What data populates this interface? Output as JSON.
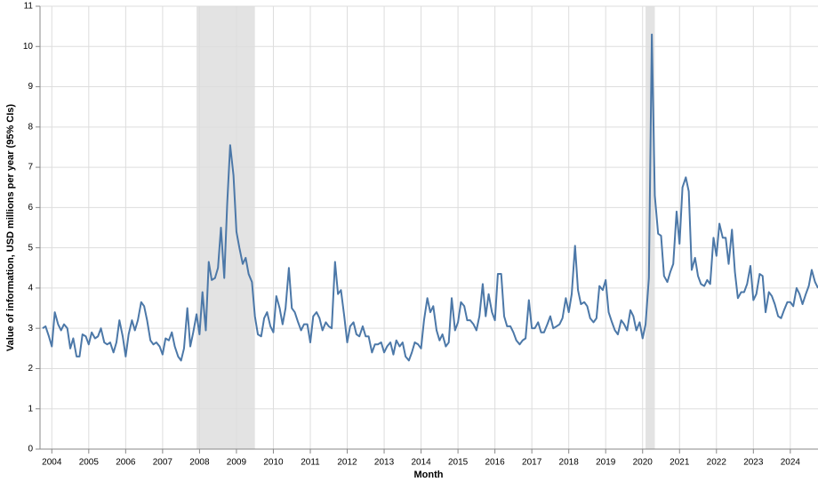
{
  "chart_data": {
    "type": "line",
    "x_label": "Month",
    "y_label": "Value of information, USD millions per year (95% CIs)",
    "color": "#4c78a8",
    "shade_color": "#e3e3e3",
    "grid": true,
    "xlim": [
      2003.68,
      2024.75
    ],
    "ylim": [
      0,
      11
    ],
    "xticks": [
      2004,
      2005,
      2006,
      2007,
      2008,
      2009,
      2010,
      2011,
      2012,
      2013,
      2014,
      2015,
      2016,
      2017,
      2018,
      2019,
      2020,
      2021,
      2022,
      2023,
      2024
    ],
    "yticks": [
      0,
      1,
      2,
      3,
      4,
      5,
      6,
      7,
      8,
      9,
      10,
      11
    ],
    "shaded_regions": [
      [
        2007.92,
        2009.5
      ],
      [
        2020.08,
        2020.33
      ]
    ],
    "x": [
      2003.75,
      2003.83,
      2003.92,
      2004.0,
      2004.08,
      2004.17,
      2004.25,
      2004.33,
      2004.42,
      2004.5,
      2004.58,
      2004.67,
      2004.75,
      2004.83,
      2004.92,
      2005.0,
      2005.08,
      2005.17,
      2005.25,
      2005.33,
      2005.42,
      2005.5,
      2005.58,
      2005.67,
      2005.75,
      2005.83,
      2005.92,
      2006.0,
      2006.08,
      2006.17,
      2006.25,
      2006.33,
      2006.42,
      2006.5,
      2006.58,
      2006.67,
      2006.75,
      2006.83,
      2006.92,
      2007.0,
      2007.08,
      2007.17,
      2007.25,
      2007.33,
      2007.42,
      2007.5,
      2007.58,
      2007.67,
      2007.75,
      2007.83,
      2007.92,
      2008.0,
      2008.08,
      2008.17,
      2008.25,
      2008.33,
      2008.42,
      2008.5,
      2008.58,
      2008.67,
      2008.75,
      2008.83,
      2008.92,
      2009.0,
      2009.08,
      2009.17,
      2009.25,
      2009.33,
      2009.42,
      2009.5,
      2009.58,
      2009.67,
      2009.75,
      2009.83,
      2009.92,
      2010.0,
      2010.08,
      2010.17,
      2010.25,
      2010.33,
      2010.42,
      2010.5,
      2010.58,
      2010.67,
      2010.75,
      2010.83,
      2010.92,
      2011.0,
      2011.08,
      2011.17,
      2011.25,
      2011.33,
      2011.42,
      2011.5,
      2011.58,
      2011.67,
      2011.75,
      2011.83,
      2011.92,
      2012.0,
      2012.08,
      2012.17,
      2012.25,
      2012.33,
      2012.42,
      2012.5,
      2012.58,
      2012.67,
      2012.75,
      2012.83,
      2012.92,
      2013.0,
      2013.08,
      2013.17,
      2013.25,
      2013.33,
      2013.42,
      2013.5,
      2013.58,
      2013.67,
      2013.75,
      2013.83,
      2013.92,
      2014.0,
      2014.08,
      2014.17,
      2014.25,
      2014.33,
      2014.42,
      2014.5,
      2014.58,
      2014.67,
      2014.75,
      2014.83,
      2014.92,
      2015.0,
      2015.08,
      2015.17,
      2015.25,
      2015.33,
      2015.42,
      2015.5,
      2015.58,
      2015.67,
      2015.75,
      2015.83,
      2015.92,
      2016.0,
      2016.08,
      2016.17,
      2016.25,
      2016.33,
      2016.42,
      2016.5,
      2016.58,
      2016.67,
      2016.75,
      2016.83,
      2016.92,
      2017.0,
      2017.08,
      2017.17,
      2017.25,
      2017.33,
      2017.42,
      2017.5,
      2017.58,
      2017.67,
      2017.75,
      2017.83,
      2017.92,
      2018.0,
      2018.08,
      2018.17,
      2018.25,
      2018.33,
      2018.42,
      2018.5,
      2018.58,
      2018.67,
      2018.75,
      2018.83,
      2018.92,
      2019.0,
      2019.08,
      2019.17,
      2019.25,
      2019.33,
      2019.42,
      2019.5,
      2019.58,
      2019.67,
      2019.75,
      2019.83,
      2019.92,
      2020.0,
      2020.08,
      2020.17,
      2020.25,
      2020.33,
      2020.42,
      2020.5,
      2020.58,
      2020.67,
      2020.75,
      2020.83,
      2020.92,
      2021.0,
      2021.08,
      2021.17,
      2021.25,
      2021.33,
      2021.42,
      2021.5,
      2021.58,
      2021.67,
      2021.75,
      2021.83,
      2021.92,
      2022.0,
      2022.08,
      2022.17,
      2022.25,
      2022.33,
      2022.42,
      2022.5,
      2022.58,
      2022.67,
      2022.75,
      2022.83,
      2022.92,
      2023.0,
      2023.08,
      2023.17,
      2023.25,
      2023.33,
      2023.42,
      2023.5,
      2023.58,
      2023.67,
      2023.75,
      2023.83,
      2023.92,
      2024.0,
      2024.08,
      2024.17,
      2024.25,
      2024.33,
      2024.42,
      2024.5,
      2024.58,
      2024.67,
      2024.75
    ],
    "values": [
      3.0,
      3.05,
      2.8,
      2.55,
      3.4,
      3.1,
      2.95,
      3.1,
      3.0,
      2.5,
      2.75,
      2.3,
      2.3,
      2.85,
      2.8,
      2.6,
      2.9,
      2.75,
      2.8,
      3.0,
      2.65,
      2.6,
      2.65,
      2.4,
      2.65,
      3.2,
      2.8,
      2.3,
      2.85,
      3.2,
      2.95,
      3.2,
      3.65,
      3.55,
      3.2,
      2.7,
      2.6,
      2.65,
      2.55,
      2.35,
      2.75,
      2.7,
      2.9,
      2.55,
      2.3,
      2.2,
      2.5,
      3.5,
      2.55,
      2.9,
      3.35,
      2.85,
      3.9,
      2.95,
      4.65,
      4.2,
      4.25,
      4.5,
      5.5,
      4.25,
      6.1,
      7.55,
      6.8,
      5.4,
      5.0,
      4.6,
      4.75,
      4.35,
      4.15,
      3.3,
      2.85,
      2.8,
      3.25,
      3.4,
      3.05,
      2.9,
      3.8,
      3.5,
      3.1,
      3.5,
      4.5,
      3.5,
      3.4,
      3.15,
      2.95,
      3.1,
      3.1,
      2.65,
      3.3,
      3.4,
      3.25,
      2.95,
      3.15,
      3.05,
      3.0,
      4.65,
      3.85,
      3.95,
      3.3,
      2.65,
      3.05,
      3.15,
      2.85,
      2.8,
      3.05,
      2.8,
      2.8,
      2.4,
      2.6,
      2.6,
      2.65,
      2.4,
      2.55,
      2.65,
      2.35,
      2.7,
      2.55,
      2.65,
      2.3,
      2.2,
      2.4,
      2.65,
      2.6,
      2.5,
      3.2,
      3.75,
      3.4,
      3.55,
      2.95,
      2.7,
      2.85,
      2.55,
      2.65,
      3.75,
      2.95,
      3.15,
      3.65,
      3.55,
      3.2,
      3.2,
      3.1,
      2.95,
      3.3,
      4.1,
      3.3,
      3.85,
      3.4,
      3.2,
      4.35,
      4.35,
      3.3,
      3.05,
      3.05,
      2.9,
      2.7,
      2.6,
      2.7,
      2.75,
      3.7,
      3.0,
      3.0,
      3.15,
      2.9,
      2.9,
      3.1,
      3.3,
      3.0,
      3.05,
      3.1,
      3.25,
      3.75,
      3.4,
      3.85,
      5.05,
      3.95,
      3.6,
      3.65,
      3.55,
      3.25,
      3.15,
      3.25,
      4.05,
      3.95,
      4.2,
      3.4,
      3.15,
      2.95,
      2.85,
      3.2,
      3.1,
      2.95,
      3.45,
      3.3,
      2.95,
      3.15,
      2.75,
      3.1,
      4.25,
      10.3,
      6.3,
      5.35,
      5.3,
      4.3,
      4.15,
      4.4,
      4.6,
      5.9,
      5.1,
      6.5,
      6.75,
      6.4,
      4.45,
      4.75,
      4.3,
      4.1,
      4.05,
      4.2,
      4.1,
      5.25,
      4.8,
      5.6,
      5.25,
      5.25,
      4.6,
      5.45,
      4.4,
      3.75,
      3.9,
      3.9,
      4.1,
      4.55,
      3.7,
      3.85,
      4.35,
      4.3,
      3.4,
      3.9,
      3.8,
      3.6,
      3.3,
      3.25,
      3.45,
      3.65,
      3.65,
      3.55,
      4.0,
      3.85,
      3.6,
      3.85,
      4.05,
      4.45,
      4.15,
      4.0
    ]
  }
}
